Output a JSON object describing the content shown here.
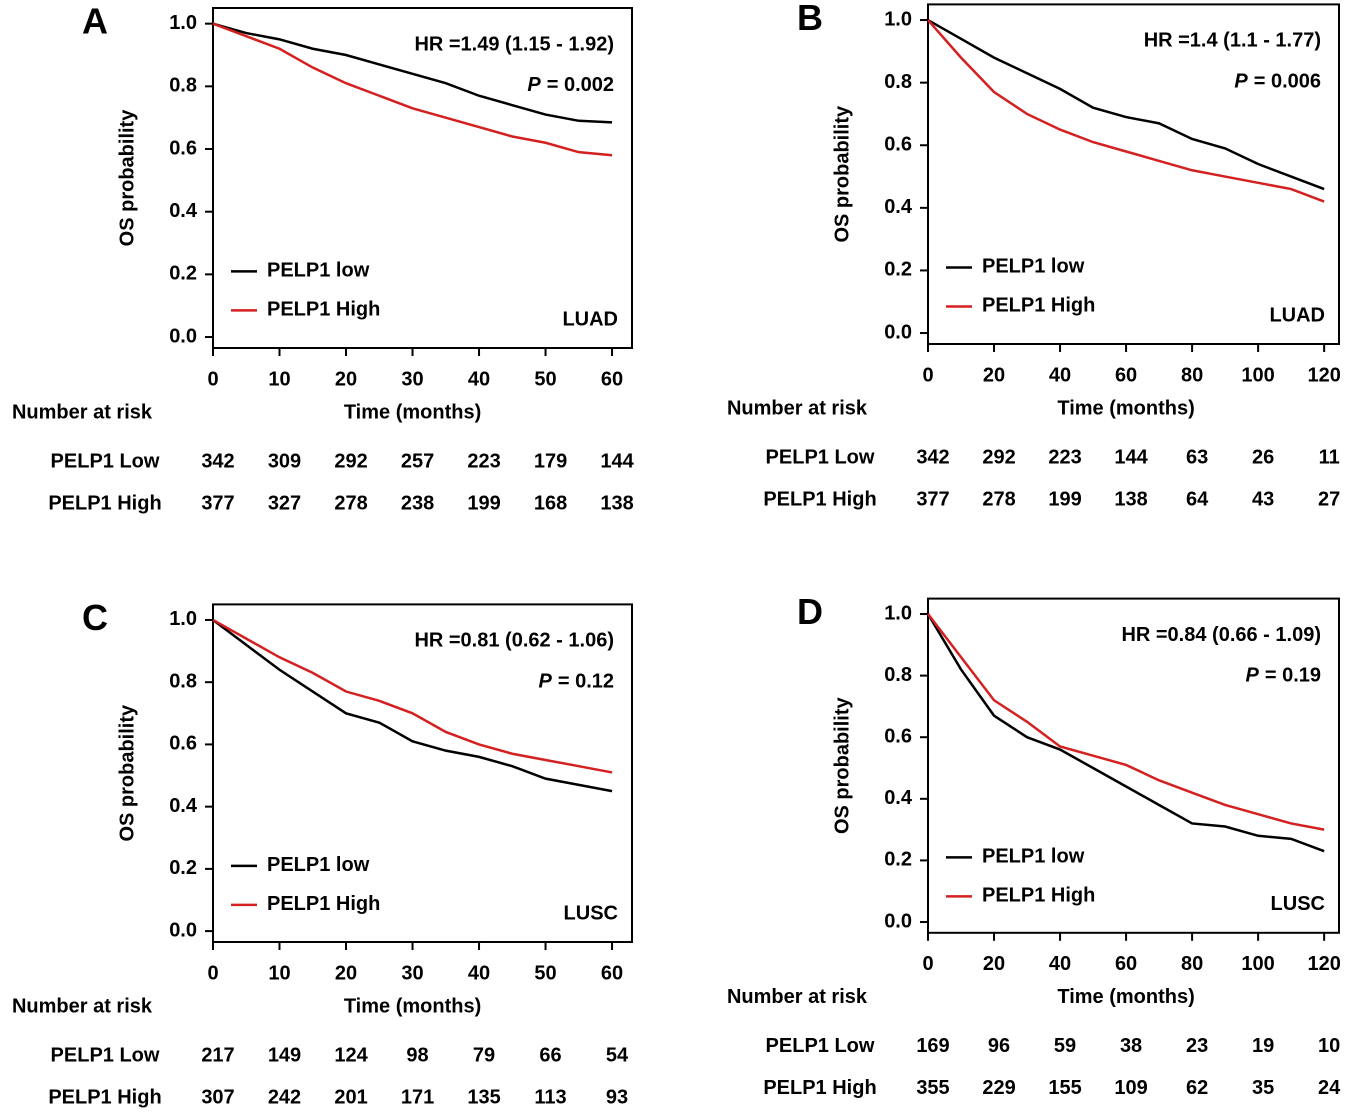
{
  "chart_data": [
    {
      "type": "line",
      "panel": "A",
      "x": [
        0,
        5,
        10,
        15,
        20,
        25,
        30,
        35,
        40,
        45,
        50,
        55,
        60
      ],
      "series": [
        {
          "name": "PELP1 low",
          "color": "#000000",
          "values": [
            1.0,
            0.97,
            0.95,
            0.92,
            0.9,
            0.87,
            0.84,
            0.81,
            0.77,
            0.74,
            0.71,
            0.69,
            0.685
          ]
        },
        {
          "name": "PELP1 High",
          "color": "#d42020",
          "values": [
            1.0,
            0.96,
            0.92,
            0.86,
            0.81,
            0.77,
            0.73,
            0.7,
            0.67,
            0.64,
            0.62,
            0.59,
            0.58
          ]
        }
      ],
      "xlim": [
        0,
        63
      ],
      "ylim": [
        -0.035,
        1.05
      ],
      "xticks": [
        0,
        10,
        20,
        30,
        40,
        50,
        60
      ],
      "yticks": [
        {
          "value": 0,
          "label": "0.0"
        },
        {
          "value": 0.2,
          "label": "0.2"
        },
        {
          "value": 0.4,
          "label": "0.4"
        },
        {
          "value": 0.6,
          "label": "0.6"
        },
        {
          "value": 0.8,
          "label": "0.8"
        },
        {
          "value": 1,
          "label": "1.0"
        }
      ],
      "xlabel": "Time (months)",
      "ylabel": "OS probability",
      "hr": "HR =1.49 (1.15 - 1.92)",
      "p_symbol": "P",
      "p_text": "= 0.002",
      "annotation": "LUAD",
      "legend": "lower left",
      "risk_table": {
        "title": "Number at risk",
        "rows": [
          {
            "name": "PELP1 Low",
            "values": [
              342,
              309,
              292,
              257,
              223,
              179,
              144
            ]
          },
          {
            "name": "PELP1 High",
            "values": [
              377,
              327,
              278,
              238,
              199,
              168,
              138
            ]
          }
        ]
      }
    },
    {
      "type": "line",
      "panel": "B",
      "x": [
        0,
        10,
        20,
        30,
        40,
        50,
        60,
        70,
        80,
        90,
        100,
        110,
        120
      ],
      "series": [
        {
          "name": "PELP1 low",
          "color": "#000000",
          "values": [
            1.0,
            0.94,
            0.88,
            0.83,
            0.78,
            0.72,
            0.69,
            0.67,
            0.62,
            0.59,
            0.54,
            0.5,
            0.46
          ]
        },
        {
          "name": "PELP1 High",
          "color": "#d42020",
          "values": [
            1.0,
            0.88,
            0.77,
            0.7,
            0.65,
            0.61,
            0.58,
            0.55,
            0.52,
            0.5,
            0.48,
            0.46,
            0.42
          ]
        }
      ],
      "xlim": [
        0,
        124.5
      ],
      "ylim": [
        -0.035,
        1.05
      ],
      "xticks": [
        0,
        20,
        40,
        60,
        80,
        100,
        120
      ],
      "yticks": [
        {
          "value": 0,
          "label": "0.0"
        },
        {
          "value": 0.2,
          "label": "0.2"
        },
        {
          "value": 0.4,
          "label": "0.4"
        },
        {
          "value": 0.6,
          "label": "0.6"
        },
        {
          "value": 0.8,
          "label": "0.8"
        },
        {
          "value": 1,
          "label": "1.0"
        }
      ],
      "xlabel": "Time (months)",
      "ylabel": "OS probability",
      "hr": "HR =1.4 (1.1 - 1.77)",
      "p_symbol": "P",
      "p_text": "= 0.006",
      "annotation": "LUAD",
      "legend": "lower left",
      "risk_table": {
        "title": "Number at risk",
        "rows": [
          {
            "name": "PELP1 Low",
            "values": [
              342,
              292,
              223,
              144,
              63,
              26,
              11
            ]
          },
          {
            "name": "PELP1 High",
            "values": [
              377,
              278,
              199,
              138,
              64,
              43,
              27
            ]
          }
        ]
      }
    },
    {
      "type": "line",
      "panel": "C",
      "x": [
        0,
        5,
        10,
        15,
        20,
        25,
        30,
        35,
        40,
        45,
        50,
        55,
        60
      ],
      "series": [
        {
          "name": "PELP1 low",
          "color": "#000000",
          "values": [
            1.0,
            0.92,
            0.84,
            0.77,
            0.7,
            0.67,
            0.61,
            0.58,
            0.56,
            0.53,
            0.49,
            0.47,
            0.45
          ]
        },
        {
          "name": "PELP1 High",
          "color": "#d42020",
          "values": [
            1.0,
            0.94,
            0.88,
            0.83,
            0.77,
            0.74,
            0.7,
            0.64,
            0.6,
            0.57,
            0.55,
            0.53,
            0.51
          ]
        }
      ],
      "xlim": [
        0,
        63
      ],
      "ylim": [
        -0.035,
        1.05
      ],
      "xticks": [
        0,
        10,
        20,
        30,
        40,
        50,
        60
      ],
      "yticks": [
        {
          "value": 0,
          "label": "0.0"
        },
        {
          "value": 0.2,
          "label": "0.2"
        },
        {
          "value": 0.4,
          "label": "0.4"
        },
        {
          "value": 0.6,
          "label": "0.6"
        },
        {
          "value": 0.8,
          "label": "0.8"
        },
        {
          "value": 1,
          "label": "1.0"
        }
      ],
      "xlabel": "Time (months)",
      "ylabel": "OS probability",
      "hr": "HR =0.81 (0.62 - 1.06)",
      "p_symbol": "P",
      "p_text": "= 0.12",
      "annotation": "LUSC",
      "legend": "lower left",
      "risk_table": {
        "title": "Number at risk",
        "rows": [
          {
            "name": "PELP1 Low",
            "values": [
              217,
              149,
              124,
              98,
              79,
              66,
              54
            ]
          },
          {
            "name": "PELP1 High",
            "values": [
              307,
              242,
              201,
              171,
              135,
              113,
              93
            ]
          }
        ]
      }
    },
    {
      "type": "line",
      "panel": "D",
      "x": [
        0,
        10,
        20,
        30,
        40,
        50,
        60,
        70,
        80,
        90,
        100,
        110,
        120
      ],
      "series": [
        {
          "name": "PELP1 low",
          "color": "#000000",
          "values": [
            1.0,
            0.82,
            0.67,
            0.6,
            0.56,
            0.5,
            0.44,
            0.38,
            0.32,
            0.31,
            0.28,
            0.27,
            0.23
          ]
        },
        {
          "name": "PELP1 High",
          "color": "#d42020",
          "values": [
            1.0,
            0.86,
            0.72,
            0.65,
            0.57,
            0.54,
            0.51,
            0.46,
            0.42,
            0.38,
            0.35,
            0.32,
            0.3
          ]
        }
      ],
      "xlim": [
        0,
        124.5
      ],
      "ylim": [
        -0.035,
        1.05
      ],
      "xticks": [
        0,
        20,
        40,
        60,
        80,
        100,
        120
      ],
      "yticks": [
        {
          "value": 0,
          "label": "0.0"
        },
        {
          "value": 0.2,
          "label": "0.2"
        },
        {
          "value": 0.4,
          "label": "0.4"
        },
        {
          "value": 0.6,
          "label": "0.6"
        },
        {
          "value": 0.8,
          "label": "0.8"
        },
        {
          "value": 1,
          "label": "1.0"
        }
      ],
      "xlabel": "Time (months)",
      "ylabel": "OS probability",
      "hr": "HR =0.84 (0.66 - 1.09)",
      "p_symbol": "P",
      "p_text": "= 0.19",
      "annotation": "LUSC",
      "legend": "lower left",
      "risk_table": {
        "title": "Number at risk",
        "rows": [
          {
            "name": "PELP1 Low",
            "values": [
              169,
              96,
              59,
              38,
              23,
              19,
              10
            ]
          },
          {
            "name": "PELP1 High",
            "values": [
              355,
              229,
              155,
              109,
              62,
              35,
              24
            ]
          }
        ]
      }
    }
  ]
}
